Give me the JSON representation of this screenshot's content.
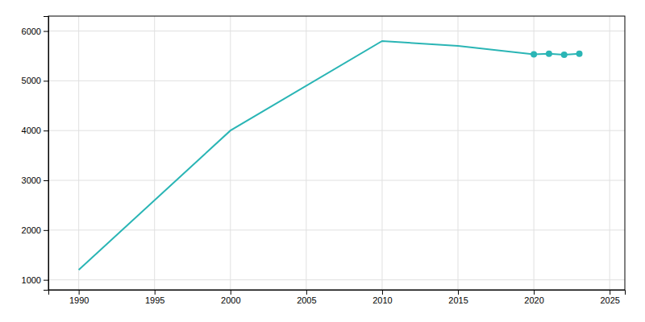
{
  "chart_data": {
    "type": "line",
    "x": [
      1990,
      2000,
      2010,
      2015,
      2020,
      2021,
      2022,
      2023
    ],
    "series": [
      {
        "type": "line",
        "color": "#2ab5b5",
        "values": [
          1200,
          4000,
          5800,
          5700,
          5530,
          5545,
          5525,
          5545
        ]
      },
      {
        "type": "scatter",
        "marker": "circle",
        "color": "#2ab5b5",
        "values": [
          null,
          null,
          null,
          null,
          5530,
          5545,
          5525,
          5545
        ]
      }
    ],
    "xlim": [
      1988,
      2026
    ],
    "xticks": [
      1990,
      1995,
      2000,
      2005,
      2010,
      2015,
      2020,
      2025
    ],
    "ylim": [
      800,
      6300
    ],
    "yticks": [
      1000,
      2000,
      3000,
      4000,
      5000,
      6000
    ],
    "grid": true
  }
}
